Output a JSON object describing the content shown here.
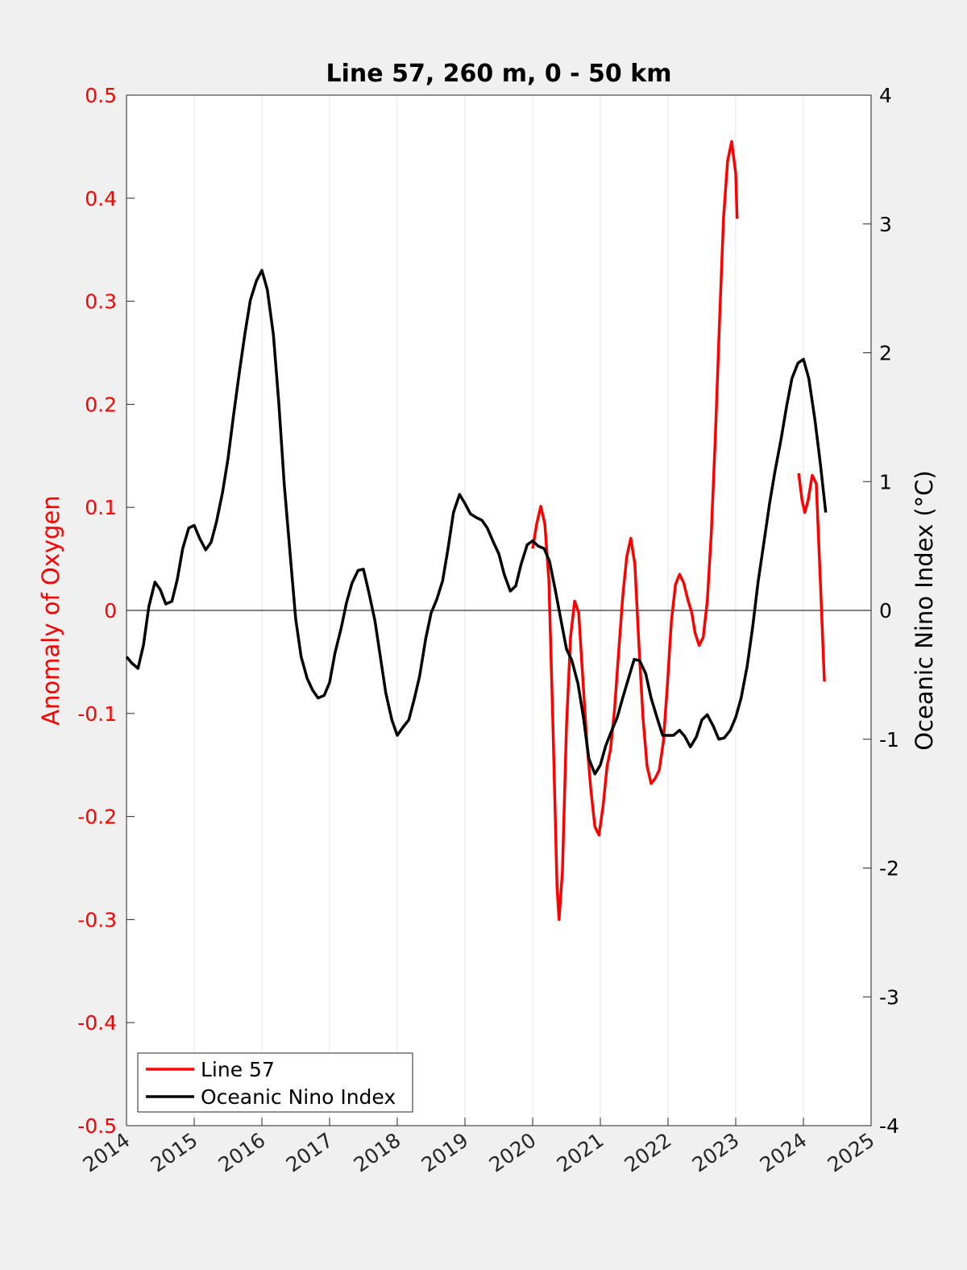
{
  "chart_data": {
    "type": "line",
    "title": "Line 57, 260 m, 0 - 50 km",
    "ylabel": "Anomaly of Oxygen",
    "y2label": "Oceanic Nino Index (°C)",
    "xlim": [
      2014,
      2025
    ],
    "xticks": [
      2014,
      2015,
      2016,
      2017,
      2018,
      2019,
      2020,
      2021,
      2022,
      2023,
      2024,
      2025
    ],
    "ylim": [
      -0.5,
      0.5
    ],
    "yticks": [
      -0.5,
      -0.4,
      -0.3,
      -0.2,
      -0.1,
      0,
      0.1,
      0.2,
      0.3,
      0.4,
      0.5
    ],
    "y2lim": [
      -4,
      4
    ],
    "y2ticks": [
      -4,
      -3,
      -2,
      -1,
      0,
      1,
      2,
      3,
      4
    ],
    "xgrid": true,
    "zero_line": true,
    "ylabel_color": "#ff0000",
    "legend": "lower left",
    "series": [
      {
        "name": "Line 57",
        "color": "#ff0000",
        "x": [
          2020.0,
          2020.06,
          2020.12,
          2020.18,
          2020.24,
          2020.3,
          2020.36,
          2020.39,
          2020.44,
          2020.5,
          2020.56,
          2020.62,
          2020.68,
          2020.74,
          2020.8,
          2020.86,
          2020.92,
          2020.98,
          2021.04,
          2021.1,
          2021.15,
          2021.21,
          2021.27,
          2021.33,
          2021.39,
          2021.45,
          2021.51,
          2021.57,
          2021.63,
          2021.69,
          2021.75,
          2021.81,
          2021.87,
          2021.93,
          2021.99,
          2022.05,
          2022.11,
          2022.17,
          2022.23,
          2022.29,
          2022.35,
          2022.4,
          2022.46,
          2022.52,
          2022.58,
          2022.64,
          2022.7,
          2022.76,
          2022.82,
          2022.88,
          2022.94,
          2023.0,
          2023.02,
          2023.5,
          2023.93,
          2023.98,
          2024.02,
          2024.07,
          2024.13,
          2024.19,
          2024.25,
          2024.31
        ],
        "values": [
          0.06,
          0.084,
          0.101,
          0.084,
          0.029,
          -0.112,
          -0.268,
          -0.3,
          -0.253,
          -0.112,
          -0.026,
          0.009,
          -0.002,
          -0.065,
          -0.127,
          -0.174,
          -0.21,
          -0.218,
          -0.19,
          -0.151,
          -0.135,
          -0.096,
          -0.041,
          0.013,
          0.052,
          0.07,
          0.045,
          -0.034,
          -0.104,
          -0.151,
          -0.168,
          -0.163,
          -0.155,
          -0.128,
          -0.073,
          -0.01,
          0.025,
          0.035,
          0.027,
          0.011,
          -0.002,
          -0.022,
          -0.034,
          -0.026,
          0.009,
          0.076,
          0.17,
          0.279,
          0.381,
          0.436,
          0.455,
          0.424,
          0.38,
          null,
          0.133,
          0.107,
          0.095,
          0.107,
          0.131,
          0.123,
          0.029,
          -0.069
        ]
      },
      {
        "name": "Oceanic Nino Index",
        "color": "#000000",
        "axis": "y2",
        "x": [
          2014.0,
          2014.08,
          2014.17,
          2014.25,
          2014.33,
          2014.42,
          2014.5,
          2014.58,
          2014.67,
          2014.75,
          2014.83,
          2014.92,
          2015.0,
          2015.08,
          2015.17,
          2015.25,
          2015.33,
          2015.42,
          2015.5,
          2015.58,
          2015.67,
          2015.75,
          2015.83,
          2015.92,
          2016.0,
          2016.08,
          2016.17,
          2016.25,
          2016.33,
          2016.42,
          2016.5,
          2016.58,
          2016.67,
          2016.75,
          2016.83,
          2016.92,
          2017.0,
          2017.08,
          2017.17,
          2017.25,
          2017.33,
          2017.42,
          2017.5,
          2017.58,
          2017.67,
          2017.75,
          2017.83,
          2017.92,
          2018.0,
          2018.08,
          2018.17,
          2018.25,
          2018.33,
          2018.42,
          2018.5,
          2018.58,
          2018.67,
          2018.75,
          2018.83,
          2018.92,
          2019.0,
          2019.08,
          2019.17,
          2019.25,
          2019.33,
          2019.42,
          2019.5,
          2019.58,
          2019.67,
          2019.75,
          2019.83,
          2019.92,
          2020.0,
          2020.08,
          2020.17,
          2020.25,
          2020.33,
          2020.42,
          2020.5,
          2020.58,
          2020.67,
          2020.75,
          2020.83,
          2020.92,
          2021.0,
          2021.08,
          2021.17,
          2021.25,
          2021.33,
          2021.42,
          2021.5,
          2021.58,
          2021.67,
          2021.75,
          2021.83,
          2021.92,
          2022.0,
          2022.08,
          2022.17,
          2022.25,
          2022.33,
          2022.42,
          2022.5,
          2022.58,
          2022.67,
          2022.75,
          2022.83,
          2022.92,
          2023.0,
          2023.08,
          2023.17,
          2023.25,
          2023.33,
          2023.42,
          2023.5,
          2023.58,
          2023.67,
          2023.75,
          2023.83,
          2023.92,
          2024.0,
          2024.08,
          2024.17,
          2024.25,
          2024.33
        ],
        "values": [
          -0.36,
          -0.41,
          -0.45,
          -0.27,
          0.03,
          0.22,
          0.16,
          0.05,
          0.07,
          0.24,
          0.48,
          0.64,
          0.66,
          0.56,
          0.47,
          0.53,
          0.69,
          0.92,
          1.18,
          1.51,
          1.86,
          2.15,
          2.41,
          2.56,
          2.64,
          2.49,
          2.14,
          1.61,
          0.98,
          0.42,
          -0.07,
          -0.36,
          -0.53,
          -0.62,
          -0.68,
          -0.66,
          -0.56,
          -0.33,
          -0.14,
          0.06,
          0.21,
          0.31,
          0.32,
          0.14,
          -0.08,
          -0.36,
          -0.64,
          -0.85,
          -0.97,
          -0.91,
          -0.85,
          -0.69,
          -0.51,
          -0.22,
          -0.02,
          0.08,
          0.23,
          0.48,
          0.76,
          0.9,
          0.83,
          0.75,
          0.72,
          0.7,
          0.64,
          0.53,
          0.44,
          0.28,
          0.15,
          0.19,
          0.36,
          0.51,
          0.54,
          0.5,
          0.48,
          0.38,
          0.17,
          -0.08,
          -0.3,
          -0.39,
          -0.57,
          -0.83,
          -1.15,
          -1.27,
          -1.2,
          -1.05,
          -0.93,
          -0.83,
          -0.68,
          -0.52,
          -0.38,
          -0.39,
          -0.49,
          -0.68,
          -0.82,
          -0.97,
          -0.97,
          -0.97,
          -0.93,
          -0.98,
          -1.06,
          -0.98,
          -0.85,
          -0.81,
          -0.9,
          -1.0,
          -0.99,
          -0.93,
          -0.83,
          -0.68,
          -0.43,
          -0.13,
          0.22,
          0.54,
          0.83,
          1.08,
          1.33,
          1.58,
          1.8,
          1.92,
          1.95,
          1.8,
          1.48,
          1.14,
          0.76
        ]
      }
    ]
  }
}
